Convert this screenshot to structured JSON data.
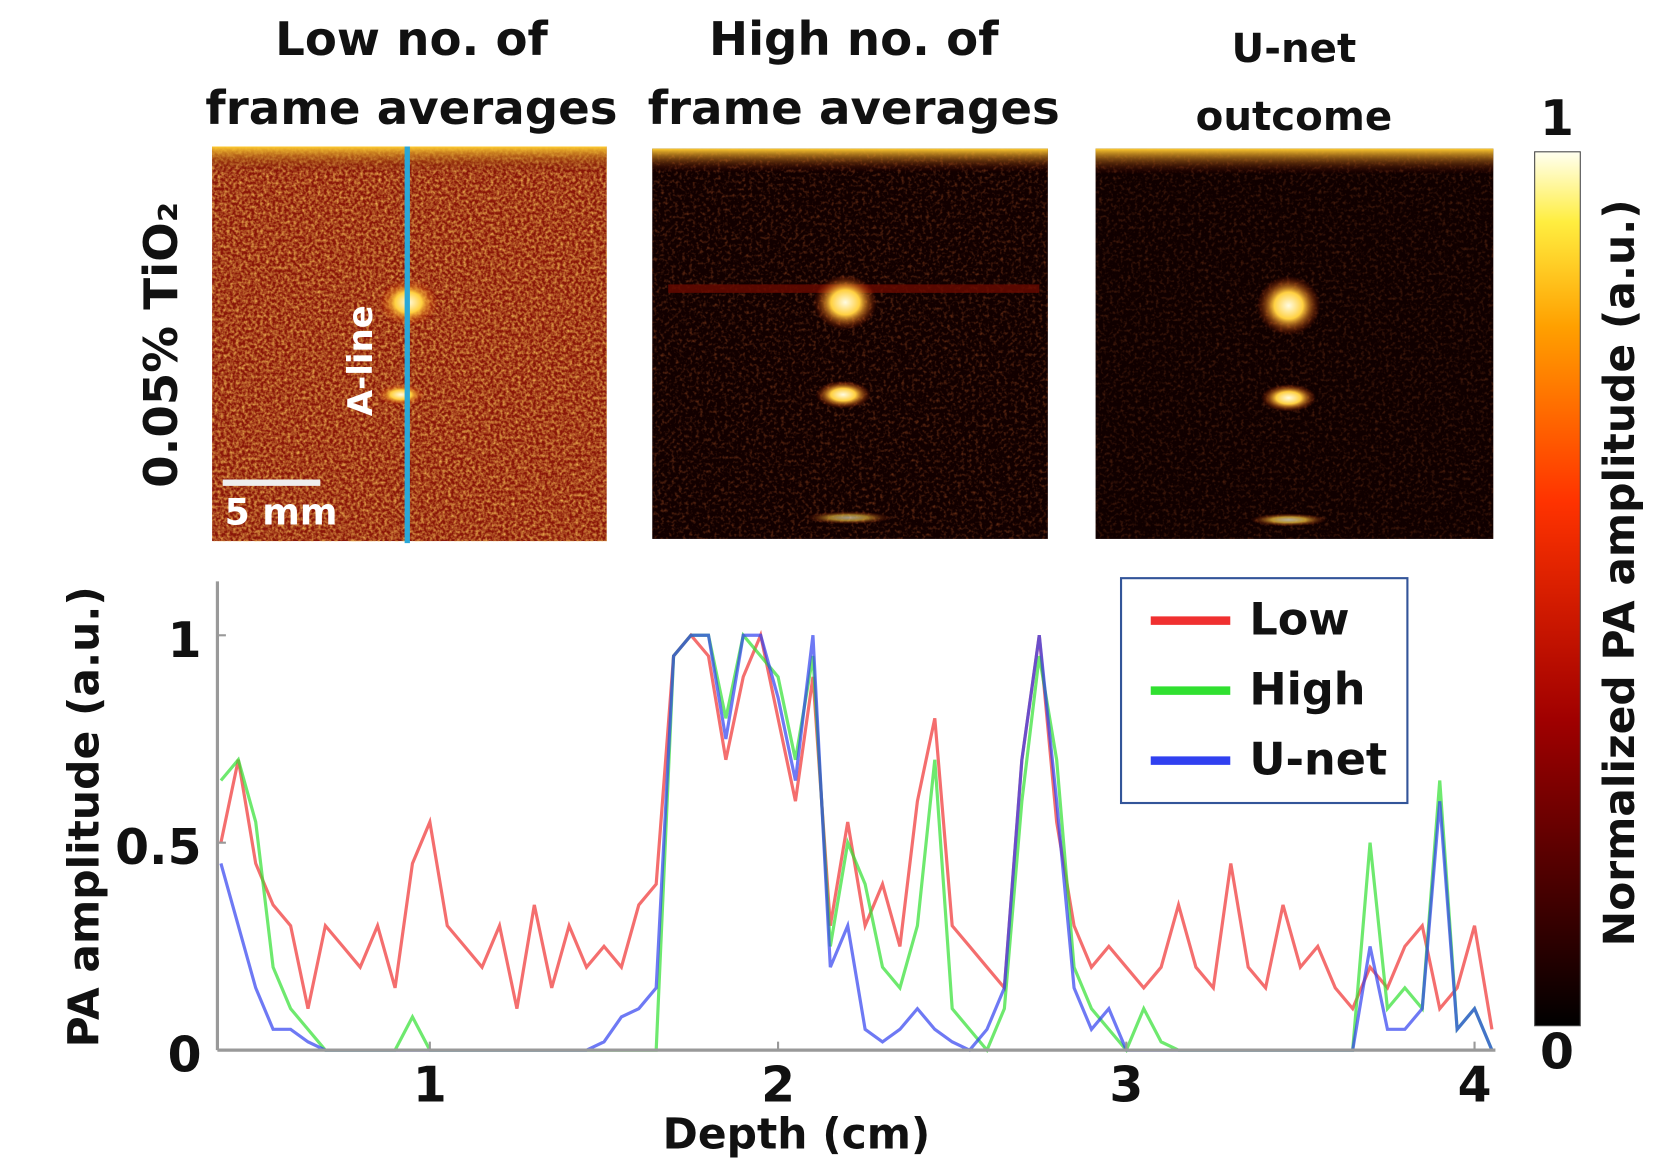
{
  "panels": [
    {
      "title": [
        "Low no. of",
        "frame averages"
      ]
    },
    {
      "title": [
        "High no. of",
        "frame averages"
      ]
    },
    {
      "title": [
        "U-net",
        "outcome"
      ]
    }
  ],
  "row_label": "0.05% TiO₂",
  "scale_bar": "5 mm",
  "a_line": "A-line",
  "colorbar": {
    "max_label": "1",
    "min_label": "0",
    "label": "Normalized PA amplitude (a.u.)"
  },
  "chart_data": {
    "type": "line",
    "x_label": "Depth (cm)",
    "y_label": "PA amplitude (a.u.)",
    "xlim": [
      0.39,
      4.06
    ],
    "ylim": [
      0,
      1.13
    ],
    "xticks": [
      1,
      2,
      3,
      4
    ],
    "yticks": [
      0,
      0.5,
      1
    ],
    "legend": "upper right",
    "x": [
      0.4,
      0.45,
      0.5,
      0.55,
      0.6,
      0.65,
      0.7,
      0.75,
      0.8,
      0.85,
      0.9,
      0.95,
      1.0,
      1.05,
      1.1,
      1.15,
      1.2,
      1.25,
      1.3,
      1.35,
      1.4,
      1.45,
      1.5,
      1.55,
      1.6,
      1.65,
      1.7,
      1.75,
      1.8,
      1.85,
      1.9,
      1.95,
      2.0,
      2.05,
      2.1,
      2.15,
      2.2,
      2.25,
      2.3,
      2.35,
      2.4,
      2.45,
      2.5,
      2.55,
      2.6,
      2.65,
      2.7,
      2.75,
      2.8,
      2.85,
      2.9,
      2.95,
      3.0,
      3.05,
      3.1,
      3.15,
      3.2,
      3.25,
      3.3,
      3.35,
      3.4,
      3.45,
      3.5,
      3.55,
      3.6,
      3.65,
      3.7,
      3.75,
      3.8,
      3.85,
      3.9,
      3.95,
      4.0,
      4.05
    ],
    "series": [
      {
        "name": "Low",
        "color": "#f03030",
        "values": [
          0.5,
          0.7,
          0.45,
          0.35,
          0.3,
          0.1,
          0.3,
          0.25,
          0.2,
          0.3,
          0.15,
          0.45,
          0.55,
          0.3,
          0.25,
          0.2,
          0.3,
          0.1,
          0.35,
          0.15,
          0.3,
          0.2,
          0.25,
          0.2,
          0.35,
          0.4,
          0.95,
          1.0,
          0.95,
          0.7,
          0.9,
          1.0,
          0.8,
          0.6,
          0.9,
          0.3,
          0.55,
          0.3,
          0.4,
          0.25,
          0.6,
          0.8,
          0.3,
          0.25,
          0.2,
          0.15,
          0.7,
          1.0,
          0.55,
          0.3,
          0.2,
          0.25,
          0.2,
          0.15,
          0.2,
          0.35,
          0.2,
          0.15,
          0.45,
          0.2,
          0.15,
          0.35,
          0.2,
          0.25,
          0.15,
          0.1,
          0.2,
          0.15,
          0.25,
          0.3,
          0.1,
          0.15,
          0.3,
          0.05
        ]
      },
      {
        "name": "High",
        "color": "#30e030",
        "values": [
          0.65,
          0.7,
          0.55,
          0.2,
          0.1,
          0.05,
          0,
          0,
          0,
          0,
          0,
          0.08,
          0,
          0,
          0,
          0,
          0,
          0,
          0,
          0,
          0,
          0,
          0,
          0,
          0,
          0,
          0.95,
          1,
          1,
          0.8,
          1,
          0.95,
          0.9,
          0.7,
          0.95,
          0.25,
          0.5,
          0.4,
          0.2,
          0.15,
          0.3,
          0.7,
          0.1,
          0.05,
          0,
          0.1,
          0.6,
          0.95,
          0.7,
          0.2,
          0.1,
          0.05,
          0,
          0.1,
          0.02,
          0,
          0,
          0,
          0,
          0,
          0,
          0,
          0,
          0,
          0,
          0,
          0.5,
          0.1,
          0.15,
          0.1,
          0.65,
          0.05,
          0.1,
          0
        ]
      },
      {
        "name": "U-net",
        "color": "#3040f0",
        "values": [
          0.45,
          0.3,
          0.15,
          0.05,
          0.05,
          0.02,
          0,
          0,
          0,
          0,
          0,
          0,
          0,
          0,
          0,
          0,
          0,
          0,
          0,
          0,
          0,
          0,
          0.02,
          0.08,
          0.1,
          0.15,
          0.95,
          1,
          1,
          0.75,
          1,
          1,
          0.85,
          0.65,
          1,
          0.2,
          0.3,
          0.05,
          0.02,
          0.05,
          0.1,
          0.05,
          0.02,
          0,
          0.05,
          0.15,
          0.7,
          1,
          0.6,
          0.15,
          0.05,
          0.1,
          0,
          0,
          0,
          0,
          0,
          0,
          0,
          0,
          0,
          0,
          0,
          0,
          0,
          0,
          0.25,
          0.05,
          0.05,
          0.1,
          0.6,
          0.05,
          0.1,
          0
        ]
      }
    ]
  }
}
